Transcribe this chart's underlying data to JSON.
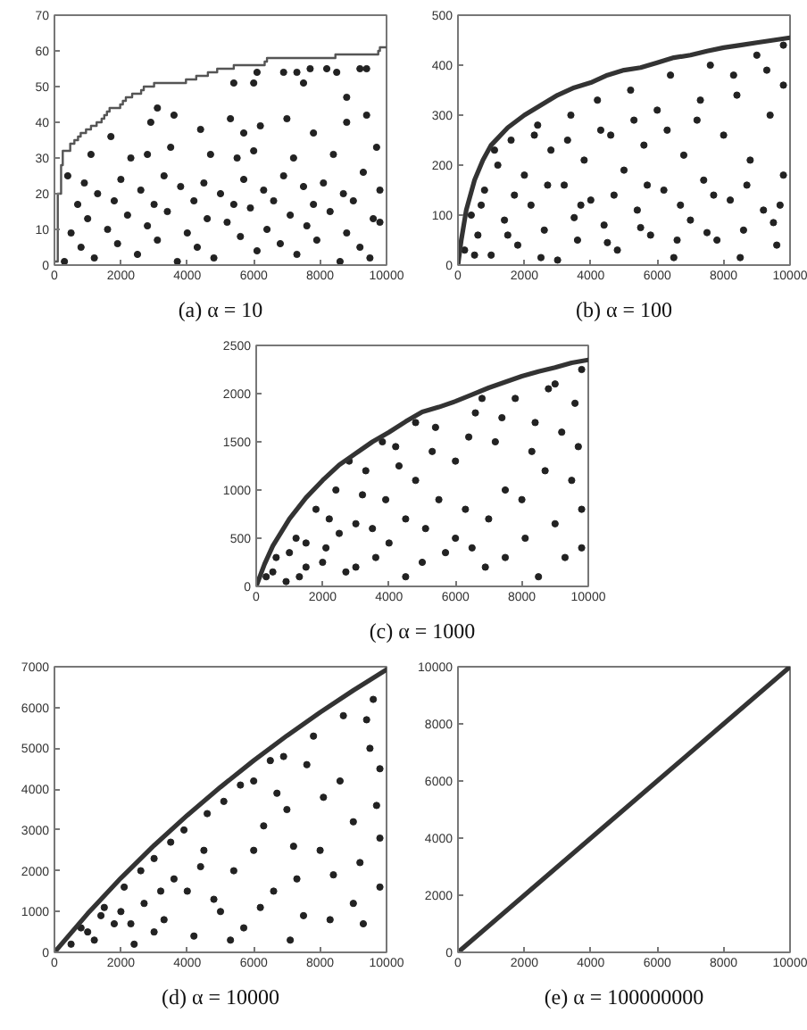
{
  "chart_data": [
    {
      "type": "scatter",
      "title": "(a) α = 10",
      "xlim": [
        0,
        10000
      ],
      "xticks": [
        0,
        2000,
        4000,
        6000,
        8000,
        10000
      ],
      "ylim": [
        0,
        70
      ],
      "yticks": [
        0,
        10,
        20,
        30,
        40,
        50,
        60,
        70
      ],
      "series": [
        {
          "color": "#222222",
          "marker": "circle",
          "x": [
            300,
            1200,
            2500,
            3700,
            4800,
            6100,
            7300,
            8600,
            9500,
            800,
            1900,
            3100,
            4300,
            5600,
            6800,
            7900,
            9200,
            500,
            1600,
            2800,
            4000,
            5200,
            6400,
            7600,
            8800,
            9800,
            1000,
            2200,
            3400,
            4600,
            5900,
            7100,
            8300,
            9600,
            700,
            1800,
            3000,
            4200,
            5400,
            6600,
            7800,
            9000,
            1300,
            2600,
            3800,
            5000,
            6300,
            7500,
            8700,
            9800,
            900,
            2000,
            3300,
            4500,
            5700,
            6900,
            8100,
            9300,
            400,
            1100,
            2300,
            3500,
            4700,
            6000,
            7200,
            8400,
            9700,
            2800,
            5500,
            1700,
            2900,
            3600,
            4400,
            5300,
            6200,
            7000,
            7800,
            8800,
            9400,
            3100,
            5700,
            5400,
            6000,
            6900,
            7300,
            7700,
            7500,
            8200,
            8500,
            8800,
            9200,
            9400,
            6100
          ],
          "values": [
            1,
            2,
            3,
            1,
            2,
            4,
            3,
            1,
            2,
            5,
            6,
            7,
            5,
            8,
            6,
            7,
            5,
            9,
            10,
            11,
            9,
            12,
            10,
            11,
            9,
            12,
            13,
            14,
            15,
            13,
            16,
            14,
            15,
            13,
            17,
            18,
            17,
            18,
            17,
            18,
            17,
            18,
            20,
            21,
            22,
            20,
            21,
            22,
            20,
            21,
            23,
            24,
            25,
            23,
            24,
            25,
            23,
            26,
            25,
            31,
            30,
            33,
            31,
            32,
            30,
            31,
            33,
            31,
            30,
            36,
            40,
            42,
            38,
            41,
            39,
            41,
            37,
            40,
            42,
            44,
            37,
            51,
            51,
            54,
            54,
            55,
            51,
            55,
            54,
            47,
            55,
            55,
            54
          ]
        },
        {
          "type": "step",
          "color": "#555555",
          "x": [
            0,
            100,
            200,
            250,
            400,
            475,
            600,
            710,
            790,
            950,
            1100,
            1270,
            1420,
            1500,
            1580,
            1660,
            1980,
            2060,
            2150,
            2340,
            2610,
            2690,
            3000,
            3960,
            4270,
            4620,
            4900,
            5400,
            6330,
            6400,
            8460,
            9750,
            9800,
            10000
          ],
          "values": [
            1,
            20,
            28,
            32,
            32,
            34,
            35,
            36,
            37,
            38,
            39,
            40,
            41,
            42,
            43,
            44,
            45,
            46,
            47,
            48,
            49,
            50,
            51,
            52,
            53,
            54,
            55,
            56,
            57,
            58,
            59,
            60,
            61,
            61
          ]
        }
      ]
    },
    {
      "type": "scatter",
      "title": "(b) α = 100",
      "xlim": [
        0,
        10000
      ],
      "xticks": [
        0,
        2000,
        4000,
        6000,
        8000,
        10000
      ],
      "ylim": [
        0,
        500
      ],
      "yticks": [
        0,
        100,
        200,
        300,
        400,
        500
      ],
      "series": [
        {
          "color": "#222222",
          "marker": "circle",
          "x": [
            200,
            400,
            600,
            800,
            1000,
            1200,
            1400,
            1600,
            1800,
            2000,
            2200,
            2400,
            2600,
            2800,
            3000,
            3200,
            3400,
            3600,
            3800,
            4000,
            4200,
            4400,
            4600,
            4800,
            5000,
            5200,
            5400,
            5600,
            5800,
            6000,
            6200,
            6400,
            6600,
            6800,
            7000,
            7200,
            7400,
            7600,
            7800,
            8000,
            8200,
            8400,
            8600,
            8800,
            9000,
            9200,
            9400,
            9600,
            9800,
            9800,
            500,
            1500,
            2500,
            3500,
            4500,
            5500,
            6500,
            7500,
            8500,
            9500,
            700,
            1700,
            2700,
            3700,
            4700,
            5700,
            6700,
            7700,
            8700,
            9700,
            1100,
            2300,
            3300,
            4300,
            5300,
            6300,
            7300,
            8300,
            9300,
            9800
          ],
          "values": [
            30,
            100,
            60,
            150,
            20,
            200,
            90,
            250,
            40,
            180,
            120,
            280,
            70,
            230,
            10,
            160,
            300,
            50,
            210,
            130,
            330,
            80,
            260,
            30,
            190,
            350,
            110,
            240,
            60,
            310,
            150,
            380,
            50,
            220,
            90,
            290,
            170,
            400,
            50,
            260,
            130,
            340,
            70,
            210,
            420,
            110,
            300,
            40,
            180,
            440,
            20,
            60,
            15,
            95,
            45,
            75,
            15,
            65,
            15,
            85,
            120,
            140,
            160,
            120,
            140,
            160,
            120,
            140,
            160,
            120,
            230,
            260,
            250,
            270,
            290,
            270,
            330,
            380,
            390,
            360
          ]
        },
        {
          "type": "line",
          "color": "#333333",
          "x": [
            0,
            100,
            250,
            500,
            750,
            1000,
            1500,
            2000,
            2500,
            3000,
            3500,
            4000,
            4500,
            5000,
            5500,
            6000,
            6500,
            7000,
            7500,
            8000,
            8500,
            9000,
            9500,
            10000
          ],
          "values": [
            0,
            50,
            110,
            170,
            210,
            240,
            275,
            300,
            320,
            340,
            355,
            365,
            380,
            390,
            395,
            405,
            415,
            420,
            428,
            435,
            440,
            445,
            450,
            455
          ]
        }
      ]
    },
    {
      "type": "scatter",
      "title": "(c) α = 1000",
      "xlim": [
        0,
        10000
      ],
      "xticks": [
        0,
        2000,
        4000,
        6000,
        8000,
        10000
      ],
      "ylim": [
        0,
        2500
      ],
      "yticks": [
        0,
        500,
        1000,
        1500,
        2000,
        2500
      ],
      "series": [
        {
          "color": "#222222",
          "marker": "circle",
          "x": [
            300,
            600,
            900,
            1200,
            1500,
            1800,
            2100,
            2400,
            2700,
            3000,
            3300,
            3600,
            3900,
            4200,
            4500,
            4800,
            5100,
            5400,
            5700,
            6000,
            6300,
            6600,
            6900,
            7200,
            7500,
            7800,
            8100,
            8400,
            8700,
            9000,
            9300,
            9600,
            9800,
            9800,
            500,
            1000,
            1500,
            2000,
            2500,
            3000,
            3500,
            4000,
            4500,
            5000,
            5500,
            6000,
            6500,
            7000,
            7500,
            8000,
            8500,
            9000,
            9500,
            9800,
            1300,
            2200,
            3200,
            4300,
            5300,
            6400,
            7400,
            8300,
            9200,
            9700,
            2800,
            3800,
            4800,
            6800,
            8800
          ],
          "values": [
            100,
            300,
            50,
            500,
            200,
            800,
            400,
            1000,
            150,
            650,
            1200,
            300,
            900,
            1450,
            100,
            1100,
            600,
            1650,
            350,
            1300,
            800,
            1800,
            200,
            1500,
            1000,
            1950,
            500,
            1700,
            1200,
            2100,
            300,
            1900,
            2250,
            800,
            150,
            350,
            450,
            250,
            550,
            200,
            600,
            450,
            700,
            250,
            900,
            500,
            400,
            700,
            300,
            900,
            100,
            650,
            1100,
            400,
            100,
            700,
            950,
            1250,
            1400,
            1550,
            1750,
            1400,
            1600,
            1450,
            1300,
            1500,
            1700,
            1950,
            2050
          ]
        },
        {
          "type": "line",
          "color": "#333333",
          "x": [
            0,
            250,
            500,
            1000,
            1500,
            2000,
            2500,
            3000,
            3500,
            4000,
            4500,
            5000,
            5500,
            6000,
            6500,
            7000,
            7500,
            8000,
            8500,
            9000,
            9500,
            10000
          ],
          "values": [
            0,
            230,
            420,
            700,
            920,
            1100,
            1260,
            1380,
            1500,
            1600,
            1710,
            1810,
            1860,
            1920,
            1990,
            2060,
            2120,
            2180,
            2230,
            2270,
            2320,
            2350
          ]
        }
      ]
    },
    {
      "type": "scatter",
      "title": "(d) α = 10000",
      "xlim": [
        0,
        10000
      ],
      "xticks": [
        0,
        2000,
        4000,
        6000,
        8000,
        10000
      ],
      "ylim": [
        0,
        7000
      ],
      "yticks": [
        0,
        1000,
        2000,
        3000,
        4000,
        5000,
        6000,
        7000
      ],
      "series": [
        {
          "color": "#222222",
          "marker": "circle",
          "x": [
            500,
            800,
            1200,
            1500,
            1800,
            2100,
            2400,
            2700,
            3000,
            3300,
            3600,
            3900,
            4200,
            4500,
            4800,
            5100,
            5400,
            5700,
            6000,
            6300,
            6600,
            6900,
            7200,
            7500,
            7800,
            8100,
            8400,
            8700,
            9000,
            9300,
            9600,
            9800,
            9800,
            9500,
            1000,
            2000,
            3000,
            4000,
            5000,
            6000,
            7000,
            8000,
            9000,
            9800,
            1400,
            2600,
            3500,
            4600,
            5600,
            6700,
            7600,
            8600,
            9400,
            9700,
            2300,
            3200,
            4400,
            5300,
            6200,
            7300,
            8300,
            9200,
            6500,
            7100
          ],
          "values": [
            200,
            600,
            300,
            1100,
            700,
            1600,
            200,
            1200,
            2300,
            800,
            1800,
            3000,
            400,
            2500,
            1300,
            3700,
            2000,
            600,
            4200,
            3100,
            1500,
            4800,
            2600,
            900,
            5300,
            3800,
            1900,
            5800,
            3200,
            700,
            6200,
            4500,
            1600,
            5000,
            500,
            1000,
            500,
            1500,
            1000,
            2500,
            3500,
            2500,
            1200,
            2800,
            900,
            2000,
            2700,
            3400,
            4100,
            3900,
            4600,
            4200,
            5700,
            3600,
            700,
            1500,
            2100,
            300,
            1100,
            1800,
            800,
            2200,
            4700,
            300
          ]
        },
        {
          "type": "line",
          "color": "#333333",
          "x": [
            0,
            1000,
            2000,
            3000,
            4000,
            5000,
            6000,
            7000,
            8000,
            9000,
            10000
          ],
          "values": [
            0,
            950,
            1820,
            2620,
            3360,
            4050,
            4700,
            5310,
            5880,
            6420,
            6930
          ]
        }
      ]
    },
    {
      "type": "line",
      "title": "(e) α = 100000000",
      "xlim": [
        0,
        10000
      ],
      "xticks": [
        0,
        2000,
        4000,
        6000,
        8000,
        10000
      ],
      "ylim": [
        0,
        10000
      ],
      "yticks": [
        0,
        2000,
        4000,
        6000,
        8000,
        10000
      ],
      "series": [
        {
          "color": "#333333",
          "x": [
            0,
            2000,
            4000,
            6000,
            8000,
            10000
          ],
          "values": [
            0,
            2000,
            4000,
            6000,
            8000,
            10000
          ]
        }
      ]
    }
  ]
}
